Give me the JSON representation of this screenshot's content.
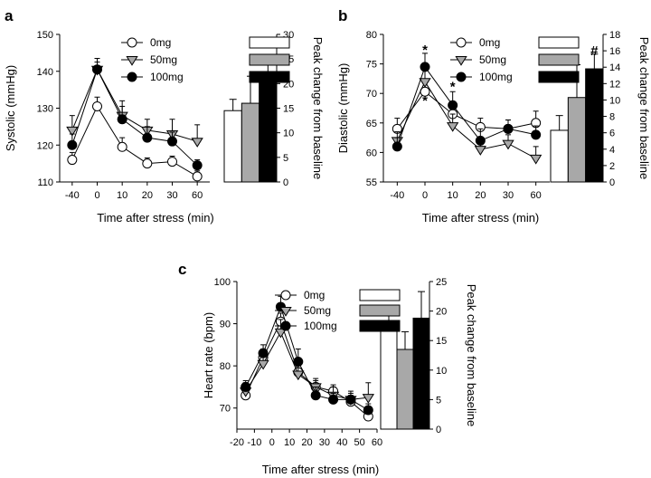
{
  "chart_data": [
    {
      "panel": "a",
      "type": "line",
      "xlabel": "Time after stress (min)",
      "ylabel": "Systolic (mmHg)",
      "ylabel_right": "Peak change from baseline",
      "categories": [
        "-40",
        "0",
        "10",
        "20",
        "30",
        "60"
      ],
      "ylim": [
        110,
        150
      ],
      "yticks": [
        "110",
        "120",
        "130",
        "140",
        "150"
      ],
      "ylim_right": [
        0,
        30
      ],
      "yticks_right": [
        "0",
        "5",
        "10",
        "15",
        "20",
        "25",
        "30"
      ],
      "series": [
        {
          "name": "0mg",
          "marker": "circle",
          "fill": "#ffffff",
          "values": [
            116,
            130.5,
            119.5,
            115,
            115.5,
            111.5
          ],
          "err": [
            2,
            2.5,
            2.5,
            1.5,
            1.5,
            1.5
          ]
        },
        {
          "name": "50mg",
          "marker": "triangle-down",
          "fill": "#a8a8a8",
          "values": [
            124,
            140.5,
            128,
            124,
            123,
            121
          ],
          "err": [
            4,
            3,
            4,
            3,
            4,
            4.5
          ]
        },
        {
          "name": "100mg",
          "marker": "circle",
          "fill": "#000000",
          "values": [
            120,
            140.5,
            127,
            122,
            121,
            114.5
          ],
          "err": [
            3,
            2,
            3.5,
            3,
            2.5,
            1.5
          ]
        }
      ],
      "bars": [
        {
          "name": "0mg",
          "fill": "#ffffff",
          "value": 14.5,
          "err": 2.3
        },
        {
          "name": "50mg",
          "fill": "#a8a8a8",
          "value": 16,
          "err": 5.5
        },
        {
          "name": "100mg",
          "fill": "#000000",
          "value": 20.5,
          "err": 4.5
        }
      ],
      "annotations": []
    },
    {
      "panel": "b",
      "type": "line",
      "xlabel": "Time after stress (min)",
      "ylabel": "Diastolic (mmHg)",
      "ylabel_right": "Peak change from baseline",
      "categories": [
        "-40",
        "0",
        "10",
        "20",
        "30",
        "60"
      ],
      "ylim": [
        55,
        80
      ],
      "yticks": [
        "55",
        "60",
        "65",
        "70",
        "75",
        "80"
      ],
      "ylim_right": [
        0,
        18
      ],
      "yticks_right": [
        "0",
        "2",
        "4",
        "6",
        "8",
        "10",
        "12",
        "14",
        "16",
        "18"
      ],
      "series": [
        {
          "name": "0mg",
          "marker": "circle",
          "fill": "#ffffff",
          "values": [
            64,
            70.3,
            66.5,
            64.3,
            64,
            65
          ],
          "err": [
            1.8,
            1.5,
            1.8,
            1.5,
            1.5,
            2
          ]
        },
        {
          "name": "50mg",
          "marker": "triangle-down",
          "fill": "#a8a8a8",
          "values": [
            62,
            72,
            64.5,
            60.5,
            61.5,
            59
          ],
          "err": [
            1.5,
            2,
            2,
            1.5,
            1.5,
            2
          ]
        },
        {
          "name": "100mg",
          "marker": "circle",
          "fill": "#000000",
          "values": [
            61,
            74.5,
            68,
            62,
            64,
            63
          ],
          "err": [
            1.5,
            2.3,
            2.3,
            2,
            1.5,
            1.5
          ]
        }
      ],
      "bars": [
        {
          "name": "0mg",
          "fill": "#ffffff",
          "value": 6.3,
          "err": 1.8
        },
        {
          "name": "50mg",
          "fill": "#a8a8a8",
          "value": 10.3,
          "err": 4
        },
        {
          "name": "100mg",
          "fill": "#000000",
          "value": 13.8,
          "err": 1.8
        }
      ],
      "annotations": [
        {
          "text": "*",
          "cat": 1,
          "value": 77.4
        },
        {
          "text": "*",
          "cat": 1,
          "value": 68.8
        },
        {
          "text": "*",
          "cat": 2,
          "value": 71.2
        },
        {
          "text": "#",
          "bar": 2,
          "value": 16
        }
      ]
    },
    {
      "panel": "c",
      "type": "line",
      "xlabel": "Time after stress (min)",
      "ylabel": "Heart rate (bpm)",
      "ylabel_right": "Peak change from baseline",
      "categories": [
        "-20",
        "-10",
        "0",
        "10",
        "20",
        "30",
        "40",
        "50",
        "60"
      ],
      "ylim": [
        65,
        100
      ],
      "yticks": [
        "70",
        "80",
        "90",
        "100"
      ],
      "ylim_right": [
        0,
        25
      ],
      "yticks_right": [
        "0",
        "5",
        "10",
        "15",
        "20",
        "25"
      ],
      "x": [
        -15,
        -5,
        5,
        15,
        25,
        35,
        45,
        55
      ],
      "xlim": [
        -20,
        60
      ],
      "series": [
        {
          "name": "0mg",
          "marker": "circle",
          "fill": "#ffffff",
          "values": [
            73,
            82,
            90.5,
            78.5,
            75,
            74,
            71.5,
            68
          ],
          "err": [
            1.5,
            2,
            2,
            2.5,
            1.5,
            1.5,
            1.5,
            1.5
          ]
        },
        {
          "name": "50mg",
          "marker": "triangle-down",
          "fill": "#a8a8a8",
          "values": [
            74,
            80.5,
            88,
            78,
            75,
            73,
            72,
            72.5
          ],
          "err": [
            2,
            2.5,
            3,
            3,
            2,
            2,
            2,
            3.5
          ]
        },
        {
          "name": "100mg",
          "marker": "circle",
          "fill": "#000000",
          "values": [
            75,
            83,
            94,
            81,
            73,
            72,
            72,
            69.5
          ],
          "err": [
            1.5,
            2,
            2.5,
            3,
            2,
            1.5,
            1.5,
            1.5
          ]
        }
      ],
      "bars": [
        {
          "name": "0mg",
          "fill": "#ffffff",
          "value": 18,
          "err": 3
        },
        {
          "name": "50mg",
          "fill": "#a8a8a8",
          "value": 13.5,
          "err": 3
        },
        {
          "name": "100mg",
          "fill": "#000000",
          "value": 18.8,
          "err": 4.5
        }
      ],
      "annotations": []
    }
  ]
}
